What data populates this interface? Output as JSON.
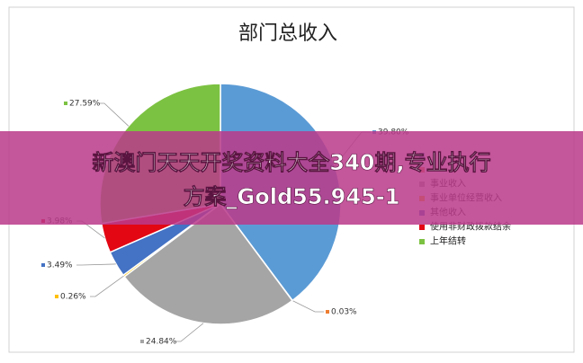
{
  "chart_data": {
    "type": "pie",
    "title": "部门总收入",
    "categories": [
      null,
      null,
      "事业收入",
      "事业单位经营收入",
      "其他收入",
      "使用非财政拨款结余",
      "上年结转"
    ],
    "values": [
      39.8,
      0.03,
      24.84,
      0.26,
      3.49,
      3.98,
      27.59
    ],
    "value_labels": [
      "39.80%",
      "0.03%",
      "24.84%",
      "0.26%",
      "3.49%",
      "3.98%",
      "27.59%"
    ],
    "colors": [
      "#5b9bd5",
      "#ed7d31",
      "#a5a5a5",
      "#ffc000",
      "#4472c4",
      "#e30613",
      "#7cc242"
    ]
  },
  "banner": {
    "lines": [
      "新澳门天天开奖资料大全340期,专业执行",
      "方案_Gold55.945-1"
    ]
  }
}
